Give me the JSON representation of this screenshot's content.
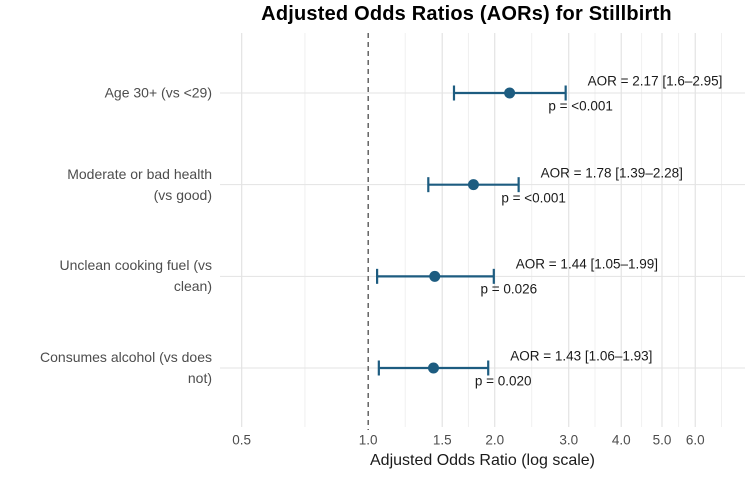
{
  "title": "Adjusted Odds Ratios (AORs) for Stillbirth",
  "chart_data": {
    "type": "forest_plot",
    "title": "Adjusted Odds Ratios (AORs) for Stillbirth",
    "xlabel": "Adjusted Odds Ratio (log scale)",
    "x_scale": "log",
    "x_domain": [
      0.444,
      7.88
    ],
    "x_ticks": [
      0.5,
      1.0,
      1.5,
      2.0,
      3.0,
      4.0,
      5.0,
      6.0
    ],
    "x_tick_labels": [
      "0.5",
      "1.0",
      "1.5",
      "2.0",
      "3.0",
      "4.0",
      "5.0",
      "6.0"
    ],
    "x_minor_gridlines": [
      0.707,
      1.225,
      1.732,
      2.449,
      3.464,
      4.472,
      5.477,
      6.928
    ],
    "reference_line_x": 1.0,
    "grid": true,
    "legend": "none",
    "rows": [
      {
        "label_lines": [
          "Age 30+ (vs <29)"
        ],
        "aor": 2.17,
        "ci_low": 1.6,
        "ci_high": 2.95,
        "p": "<0.001",
        "aor_label": "AOR = 2.17 [1.6–2.95]",
        "p_label": "p = <0.001"
      },
      {
        "label_lines": [
          "Moderate or bad health",
          "(vs good)"
        ],
        "aor": 1.78,
        "ci_low": 1.39,
        "ci_high": 2.28,
        "p": "<0.001",
        "aor_label": "AOR = 1.78 [1.39–2.28]",
        "p_label": "p = <0.001"
      },
      {
        "label_lines": [
          "Unclean cooking fuel (vs",
          "clean)"
        ],
        "aor": 1.44,
        "ci_low": 1.05,
        "ci_high": 1.99,
        "p": "0.026",
        "aor_label": "AOR = 1.44 [1.05–1.99]",
        "p_label": "p = 0.026"
      },
      {
        "label_lines": [
          "Consumes alcohol (vs does",
          "not)"
        ],
        "aor": 1.43,
        "ci_low": 1.06,
        "ci_high": 1.93,
        "p": "0.020",
        "aor_label": "AOR = 1.43 [1.06–1.93]",
        "p_label": "p = 0.020"
      }
    ],
    "colors": {
      "marker": "#1d5c80",
      "grid_major": "#e3e3e3",
      "grid_minor": "#f0f0f0",
      "reference_line": "#595959",
      "axis_text": "#4d4d4d",
      "annotation_text": "#1a1a1a"
    }
  }
}
